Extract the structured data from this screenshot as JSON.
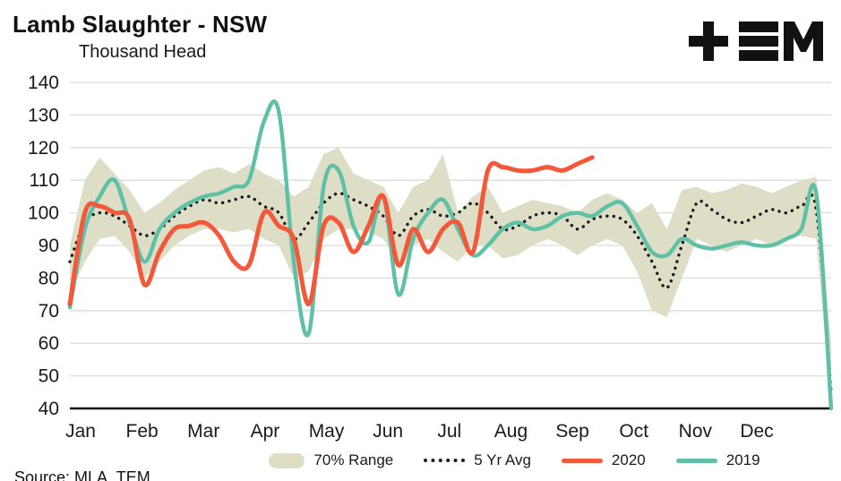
{
  "header": {
    "title": "Lamb Slaughter - NSW",
    "subtitle": "Thousand Head"
  },
  "logo": {
    "icon": "tem-logo"
  },
  "footer": {
    "source": "Source: MLA, TEM"
  },
  "legend": [
    {
      "label": "70% Range",
      "type": "band"
    },
    {
      "label": "5 Yr Avg",
      "type": "dotted"
    },
    {
      "label": "2020",
      "type": "line"
    },
    {
      "label": "2019",
      "type": "line"
    }
  ],
  "chart_data": {
    "type": "line",
    "title": "Lamb Slaughter - NSW",
    "ylabel": "Thousand Head",
    "ylim": [
      40,
      140
    ],
    "ytick_step": 10,
    "weeks": 52,
    "x_months": [
      "Jan",
      "Feb",
      "Mar",
      "Apr",
      "May",
      "Jun",
      "Jul",
      "Aug",
      "Sep",
      "Oct",
      "Nov",
      "Dec"
    ],
    "grid": "horizontal",
    "legend_position": "bottom",
    "band": {
      "name": "70% Range",
      "color": "#deddc6",
      "upper": [
        90,
        110,
        117,
        112,
        107,
        100,
        103,
        107,
        110,
        113,
        114,
        112,
        115,
        112,
        110,
        105,
        108,
        118,
        120,
        112,
        110,
        108,
        100,
        108,
        110,
        118,
        100,
        105,
        108,
        100,
        102,
        104,
        103,
        102,
        100,
        104,
        106,
        104,
        100,
        103,
        95,
        107,
        108,
        106,
        107,
        109,
        108,
        106,
        108,
        110,
        111,
        60
      ],
      "lower": [
        75,
        85,
        92,
        93,
        88,
        80,
        85,
        90,
        93,
        95,
        95,
        94,
        95,
        92,
        90,
        80,
        82,
        92,
        95,
        95,
        94,
        92,
        85,
        90,
        92,
        88,
        85,
        90,
        90,
        86,
        87,
        90,
        92,
        90,
        87,
        90,
        92,
        90,
        82,
        70,
        68,
        80,
        92,
        90,
        88,
        90,
        92,
        90,
        92,
        93,
        92,
        40
      ]
    },
    "series": [
      {
        "name": "5 Yr Avg",
        "color": "#1a1a1a",
        "style": "dotted",
        "width": 3.4,
        "values": [
          85,
          97,
          100,
          99,
          96,
          93,
          95,
          99,
          102,
          104,
          103,
          104,
          105,
          102,
          100,
          92,
          97,
          103,
          106,
          104,
          102,
          99,
          93,
          99,
          101,
          99,
          100,
          103,
          100,
          95,
          96,
          99,
          100,
          99,
          95,
          98,
          99,
          98,
          93,
          85,
          77,
          90,
          103,
          101,
          98,
          97,
          99,
          101,
          100,
          102,
          101,
          45
        ]
      },
      {
        "name": "2019",
        "color": "#5ec0a6",
        "style": "solid",
        "width": 4.4,
        "values": [
          71,
          95,
          105,
          110,
          97,
          85,
          95,
          100,
          103,
          105,
          106,
          108,
          110,
          128,
          131,
          85,
          63,
          108,
          113,
          96,
          91,
          105,
          75,
          92,
          100,
          104,
          95,
          87,
          90,
          95,
          97,
          95,
          96,
          99,
          100,
          99,
          102,
          103,
          96,
          88,
          87,
          92,
          90,
          89,
          90,
          91,
          90,
          90,
          92,
          95,
          106,
          40
        ]
      },
      {
        "name": "2020",
        "color": "#f4583a",
        "style": "solid",
        "width": 5,
        "values": [
          72,
          100,
          102,
          100,
          98,
          78,
          88,
          95,
          96,
          97,
          93,
          85,
          84,
          100,
          96,
          92,
          72,
          96,
          97,
          88,
          96,
          105,
          84,
          95,
          88,
          95,
          97,
          88,
          113,
          114,
          113,
          113,
          114,
          113,
          115,
          117
        ]
      }
    ]
  }
}
